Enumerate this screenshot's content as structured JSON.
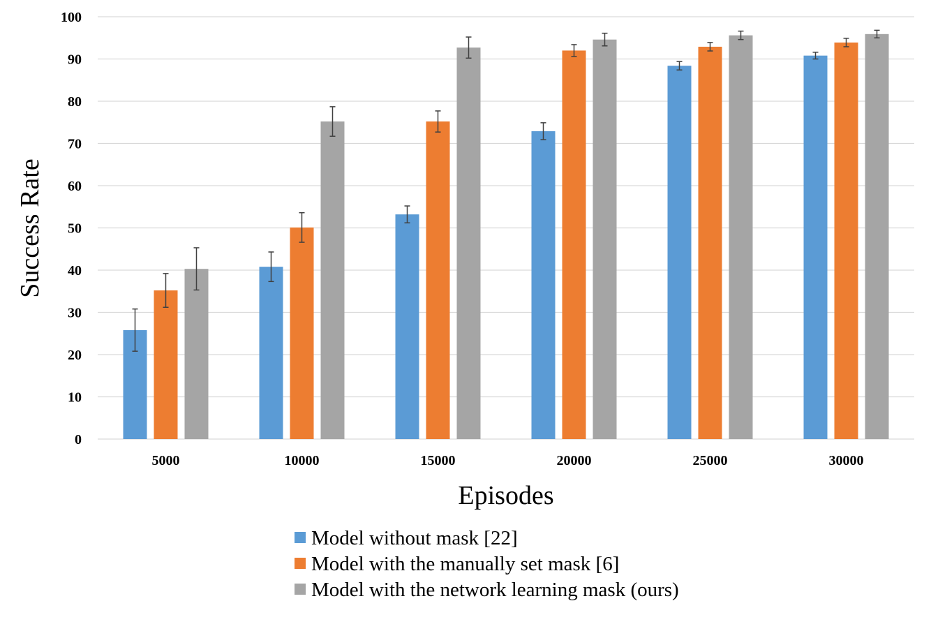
{
  "chart_data": {
    "type": "bar",
    "title": "",
    "xlabel": "Episodes",
    "ylabel": "Success Rate",
    "ylim": [
      0,
      100
    ],
    "yticks": [
      0,
      10,
      20,
      30,
      40,
      50,
      60,
      70,
      80,
      90,
      100
    ],
    "grid": true,
    "legend_position": "bottom",
    "categories": [
      "5000",
      "10000",
      "15000",
      "20000",
      "25000",
      "30000"
    ],
    "series": [
      {
        "name": "Model without mask [22]",
        "color": "#5B9BD5",
        "values": [
          25.8,
          40.8,
          53.2,
          72.9,
          88.4,
          90.8
        ],
        "errors": [
          5.0,
          3.5,
          2.0,
          2.0,
          1.0,
          0.8
        ]
      },
      {
        "name": "Model with the manually set mask [6]",
        "color": "#ED7D31",
        "values": [
          35.2,
          50.1,
          75.2,
          92.0,
          92.9,
          93.9
        ],
        "errors": [
          4.0,
          3.5,
          2.5,
          1.4,
          1.0,
          1.0
        ]
      },
      {
        "name": "Model with the network learning mask (ours)",
        "color": "#A5A5A5",
        "values": [
          40.3,
          75.2,
          92.7,
          94.6,
          95.6,
          95.9
        ],
        "errors": [
          5.0,
          3.5,
          2.5,
          1.5,
          1.0,
          0.9
        ]
      }
    ]
  }
}
